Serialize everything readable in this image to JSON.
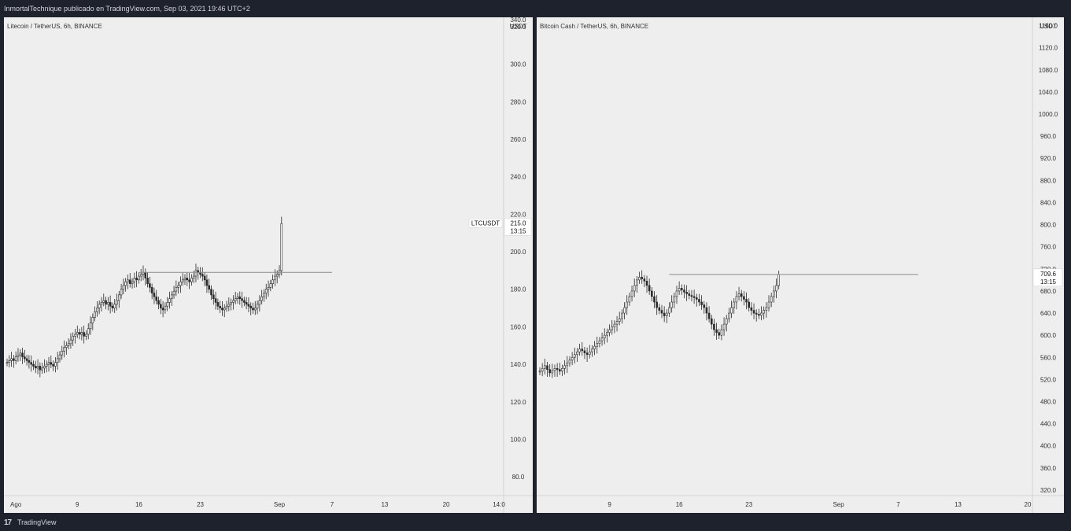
{
  "header": {
    "text": "InmortalTechnique publicado en TradingView.com, Sep 03, 2021 19:46 UTC+2"
  },
  "footer": {
    "logo": "17",
    "brand": "TradingView"
  },
  "colors": {
    "background": "#1e222d",
    "panel": "#eeeeee",
    "candle": "#2a2a2a",
    "level": "#8a8a8a",
    "text": "#333333"
  },
  "chart_data": [
    {
      "type": "candlestick",
      "title": "Litecoin / TetherUS, 6h, BINANCE",
      "currency": "USDT",
      "symbol_label": "LTCUSDT",
      "last_price": "215.0",
      "countdown": "13:15",
      "ylim": [
        70,
        325
      ],
      "yticks": [
        80,
        100,
        120,
        140,
        160,
        180,
        200,
        220,
        240,
        260,
        280,
        300,
        320
      ],
      "ytick_labels": [
        "80.0",
        "100.0",
        "120.0",
        "140.0",
        "160.0",
        "180.0",
        "200.0",
        "220.0",
        "240.0",
        "260.0",
        "280.0",
        "300.0",
        "320.0"
      ],
      "top_cut_label": "340.0",
      "x_start": "2021-08-01",
      "x_end": "2021-09-14",
      "xticks": [
        {
          "date": "2021-08-02",
          "label": "Ago"
        },
        {
          "date": "2021-08-09",
          "label": "9"
        },
        {
          "date": "2021-08-16",
          "label": "16"
        },
        {
          "date": "2021-08-23",
          "label": "23"
        },
        {
          "date": "2021-09-01",
          "label": "Sep"
        },
        {
          "date": "2021-09-07",
          "label": "7"
        },
        {
          "date": "2021-09-13",
          "label": "13"
        },
        {
          "date": "2021-09-20",
          "label": "20"
        },
        {
          "date": "2021-09-26",
          "label": "14:0"
        }
      ],
      "x_end_ref": "2021-09-26",
      "series_start": "2021-08-01",
      "level": {
        "value": 189,
        "from": "2021-08-16",
        "to": "2021-09-07"
      },
      "closes": [
        141,
        142,
        143,
        142,
        144,
        145,
        146,
        144,
        143,
        142,
        141,
        140,
        139,
        138,
        139,
        137,
        138,
        139,
        140,
        141,
        140,
        139,
        141,
        143,
        145,
        147,
        149,
        150,
        151,
        153,
        155,
        156,
        157,
        156,
        157,
        155,
        156,
        159,
        162,
        165,
        168,
        170,
        172,
        173,
        174,
        172,
        173,
        171,
        170,
        172,
        174,
        177,
        180,
        182,
        184,
        185,
        183,
        184,
        186,
        185,
        187,
        188,
        189,
        186,
        183,
        181,
        178,
        176,
        174,
        172,
        170,
        169,
        171,
        173,
        175,
        177,
        179,
        181,
        182,
        184,
        185,
        186,
        185,
        184,
        186,
        187,
        190,
        189,
        188,
        187,
        185,
        182,
        180,
        177,
        175,
        173,
        171,
        170,
        169,
        170,
        171,
        172,
        173,
        174,
        175,
        176,
        175,
        174,
        173,
        172,
        171,
        170,
        169,
        170,
        172,
        174,
        176,
        178,
        180,
        181,
        183,
        185,
        187,
        188,
        190,
        215
      ]
    },
    {
      "type": "candlestick",
      "title": "Bitcoin Cash / TetherUS, 6h, BINANCE",
      "currency": "USDT",
      "last_price": "709.6",
      "countdown": "13:15",
      "ylim": [
        310,
        1175
      ],
      "yticks": [
        320,
        360,
        400,
        440,
        480,
        520,
        560,
        600,
        640,
        680,
        720,
        760,
        800,
        840,
        880,
        920,
        960,
        1000,
        1040,
        1080,
        1120,
        1160
      ],
      "ytick_labels": [
        "320.0",
        "360.0",
        "400.0",
        "440.0",
        "480.0",
        "520.0",
        "560.0",
        "600.0",
        "640.0",
        "680.0",
        "720.0",
        "760.0",
        "800.0",
        "840.0",
        "880.0",
        "920.0",
        "960.0",
        "1000.0",
        "1040.0",
        "1080.0",
        "1120.0",
        "1160.0"
      ],
      "x_start": "2021-08-02",
      "x_end": "2021-09-25",
      "xticks": [
        {
          "date": "2021-08-09",
          "label": "9"
        },
        {
          "date": "2021-08-16",
          "label": "16"
        },
        {
          "date": "2021-08-23",
          "label": "23"
        },
        {
          "date": "2021-09-01",
          "label": "Sep"
        },
        {
          "date": "2021-09-07",
          "label": "7"
        },
        {
          "date": "2021-09-13",
          "label": "13"
        },
        {
          "date": "2021-09-20",
          "label": "20"
        }
      ],
      "series_start": "2021-08-02",
      "level": {
        "value": 710,
        "from": "2021-08-15",
        "to": "2021-09-09"
      },
      "closes": [
        535,
        540,
        545,
        538,
        532,
        536,
        540,
        538,
        535,
        540,
        545,
        550,
        555,
        560,
        565,
        570,
        575,
        572,
        568,
        565,
        570,
        575,
        580,
        585,
        590,
        595,
        600,
        605,
        610,
        615,
        620,
        625,
        630,
        640,
        650,
        660,
        670,
        680,
        690,
        700,
        705,
        702,
        698,
        690,
        680,
        670,
        660,
        650,
        645,
        640,
        635,
        640,
        650,
        660,
        670,
        680,
        685,
        682,
        678,
        675,
        672,
        670,
        668,
        665,
        660,
        655,
        650,
        640,
        630,
        620,
        610,
        605,
        600,
        610,
        620,
        630,
        640,
        650,
        660,
        670,
        675,
        670,
        665,
        660,
        650,
        645,
        640,
        638,
        636,
        640,
        645,
        650,
        660,
        670,
        680,
        690,
        710
      ]
    }
  ]
}
